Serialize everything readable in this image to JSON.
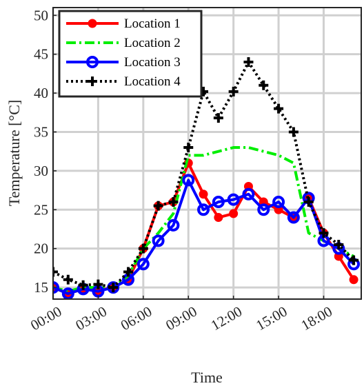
{
  "chart_data": {
    "type": "line",
    "xlabel": "Time",
    "ylabel": "Temperature [°C]",
    "x": [
      0,
      1,
      2,
      3,
      4,
      5,
      6,
      7,
      8,
      9,
      10,
      11,
      12,
      13,
      14,
      15,
      16,
      17,
      18,
      19,
      20
    ],
    "xlim": [
      0,
      20.5
    ],
    "ylim": [
      13.5,
      51
    ],
    "xticks": [
      {
        "x": 0,
        "label": "00:00"
      },
      {
        "x": 3,
        "label": "03:00"
      },
      {
        "x": 6,
        "label": "06:00"
      },
      {
        "x": 9,
        "label": "09:00"
      },
      {
        "x": 12,
        "label": "12:00"
      },
      {
        "x": 15,
        "label": "15:00"
      },
      {
        "x": 18,
        "label": "18:00"
      }
    ],
    "yticks": [
      {
        "y": 15,
        "label": "15"
      },
      {
        "y": 20,
        "label": "20"
      },
      {
        "y": 25,
        "label": "25"
      },
      {
        "y": 30,
        "label": "30"
      },
      {
        "y": 35,
        "label": "35"
      },
      {
        "y": 40,
        "label": "40"
      },
      {
        "y": 45,
        "label": "45"
      },
      {
        "y": 50,
        "label": "50"
      }
    ],
    "grid": true,
    "legend_position": "top-left",
    "series": [
      {
        "name": "Location 1",
        "color": "#ff0000",
        "line_style": "solid",
        "marker": "filled-circle",
        "values": [
          15,
          14.2,
          14.8,
          14.6,
          15,
          16,
          20,
          25.5,
          26,
          31,
          27,
          24,
          24.5,
          28,
          26,
          25,
          24,
          26.5,
          22,
          19,
          16
        ]
      },
      {
        "name": "Location 2",
        "color": "#00ee00",
        "line_style": "dash-dot",
        "marker": "none",
        "values": [
          15,
          14.5,
          15,
          15,
          15,
          16.5,
          20,
          22,
          24.5,
          32,
          32,
          32.5,
          33,
          33,
          32.5,
          32,
          31,
          22,
          21,
          20,
          19
        ]
      },
      {
        "name": "Location 3",
        "color": "#0000ff",
        "line_style": "solid",
        "marker": "open-circle",
        "values": [
          15,
          14.2,
          14.8,
          14.5,
          15,
          16,
          18,
          21,
          23,
          28.8,
          25,
          26,
          26.3,
          27,
          25,
          26,
          24,
          26.5,
          21,
          20,
          18
        ]
      },
      {
        "name": "Location 4",
        "color": "#000000",
        "line_style": "dotted",
        "marker": "plus",
        "values": [
          17,
          16,
          15.3,
          15.4,
          15,
          17,
          20,
          25.5,
          26,
          33,
          40.2,
          36.8,
          40.2,
          44,
          41,
          38,
          35,
          26,
          22,
          20.5,
          18.5
        ]
      }
    ]
  }
}
